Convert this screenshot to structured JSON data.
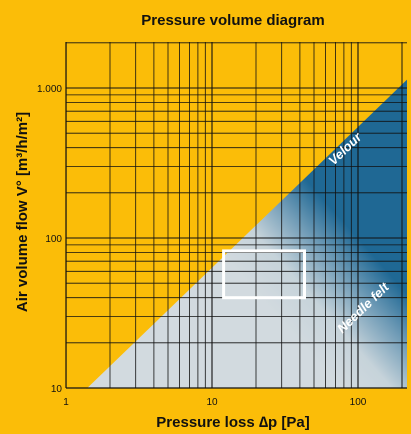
{
  "chart_data": {
    "type": "area",
    "title": "Pressure volume diagram",
    "xlabel": "Pressure loss ∆p [Pa]",
    "ylabel": "Air volume flow  V° [m³/h/m²]",
    "x_scale": "log",
    "y_scale": "log",
    "xlim": [
      1,
      250
    ],
    "ylim": [
      10,
      2000
    ],
    "grid": true,
    "x_ticks": [
      {
        "value": 1,
        "label": "1"
      },
      {
        "value": 10,
        "label": "10"
      },
      {
        "value": 100,
        "label": "100"
      }
    ],
    "y_ticks": [
      {
        "value": 10,
        "label": "10"
      },
      {
        "value": 100,
        "label": "100"
      },
      {
        "value": 1000,
        "label": "1.000"
      }
    ],
    "series": [
      {
        "name": "Velour",
        "color": "#d2dadf",
        "polygon": [
          {
            "x": 1.4,
            "y": 10
          },
          {
            "x": 250,
            "y": 1300
          },
          {
            "x": 250,
            "y": 10
          }
        ]
      },
      {
        "name": "Needle felt",
        "color": "#1f6894",
        "polygon": [
          {
            "x": 8,
            "y": 10
          },
          {
            "x": 250,
            "y": 150
          },
          {
            "x": 250,
            "y": 10
          }
        ]
      }
    ],
    "highlight_box": {
      "x": [
        12,
        43
      ],
      "y": [
        40,
        82
      ],
      "color": "#ffffff"
    },
    "colors": {
      "background": "#fbbd08",
      "grid": "#111111",
      "velour_band": "#d2dadf",
      "needle_felt_band": "#1f6894"
    }
  }
}
